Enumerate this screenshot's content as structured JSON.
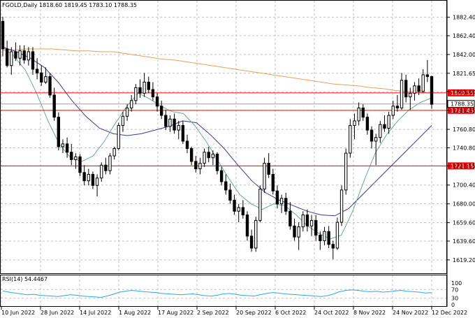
{
  "chart_data": {
    "type": "candlestick",
    "symbol_header": "FGOLD,Daily  1818.60 1819.45 1783.10 1788.35",
    "last_price": "1788.35",
    "price_axis": {
      "range": [
        1610,
        1892
      ],
      "ticks": [
        "1882.40",
        "1862.40",
        "1842.00",
        "1821.65",
        "1801.60",
        "1781.45",
        "1760.80",
        "1740.80",
        "1721.15",
        "1700.40",
        "1680.00",
        "1659.60",
        "1639.60",
        "1619.20"
      ]
    },
    "x_axis": {
      "ticks": [
        "10 Jun 2022",
        "28 Jun 2022",
        "14 Jul 2022",
        "1 Aug 2022",
        "17 Aug 2022",
        "2 Sep 2022",
        "20 Sep 2022",
        "6 Oct 2022",
        "24 Oct 2022",
        "8 Nov 2022",
        "24 Nov 2022",
        "12 Dec 2022"
      ]
    },
    "horizontal_lines": [
      {
        "label": "1800.35",
        "value": 1800.35,
        "color": "#ff0000"
      },
      {
        "label": "1781.45",
        "value": 1781.45,
        "color": "#ff0000"
      },
      {
        "label": "1721.15",
        "value": 1721.15,
        "color": "#ff0000"
      }
    ],
    "price_badge_color": "#ff0000",
    "candles": [
      [
        1878,
        1883,
        1840,
        1848
      ],
      [
        1848,
        1857,
        1828,
        1830
      ],
      [
        1830,
        1850,
        1820,
        1845
      ],
      [
        1845,
        1855,
        1835,
        1838
      ],
      [
        1838,
        1852,
        1830,
        1846
      ],
      [
        1846,
        1852,
        1832,
        1836
      ],
      [
        1836,
        1850,
        1830,
        1845
      ],
      [
        1845,
        1850,
        1820,
        1826
      ],
      [
        1826,
        1838,
        1815,
        1822
      ],
      [
        1822,
        1830,
        1808,
        1812
      ],
      [
        1812,
        1828,
        1810,
        1818
      ],
      [
        1818,
        1822,
        1795,
        1798
      ],
      [
        1798,
        1806,
        1770,
        1774
      ],
      [
        1774,
        1779,
        1738,
        1742
      ],
      [
        1742,
        1750,
        1735,
        1745
      ],
      [
        1745,
        1752,
        1730,
        1736
      ],
      [
        1736,
        1745,
        1722,
        1728
      ],
      [
        1728,
        1735,
        1718,
        1731
      ],
      [
        1731,
        1734,
        1710,
        1714
      ],
      [
        1714,
        1722,
        1700,
        1705
      ],
      [
        1705,
        1718,
        1700,
        1712
      ],
      [
        1712,
        1715,
        1696,
        1700
      ],
      [
        1700,
        1712,
        1688,
        1708
      ],
      [
        1708,
        1725,
        1704,
        1722
      ],
      [
        1722,
        1730,
        1712,
        1716
      ],
      [
        1716,
        1735,
        1712,
        1732
      ],
      [
        1732,
        1742,
        1728,
        1740
      ],
      [
        1740,
        1768,
        1738,
        1765
      ],
      [
        1765,
        1780,
        1758,
        1775
      ],
      [
        1775,
        1788,
        1770,
        1784
      ],
      [
        1784,
        1798,
        1780,
        1792
      ],
      [
        1792,
        1810,
        1788,
        1806
      ],
      [
        1806,
        1815,
        1795,
        1800
      ],
      [
        1800,
        1822,
        1796,
        1812
      ],
      [
        1812,
        1818,
        1800,
        1804
      ],
      [
        1804,
        1812,
        1792,
        1796
      ],
      [
        1796,
        1800,
        1780,
        1786
      ],
      [
        1786,
        1792,
        1772,
        1776
      ],
      [
        1776,
        1782,
        1760,
        1764
      ],
      [
        1764,
        1776,
        1758,
        1772
      ],
      [
        1772,
        1778,
        1756,
        1760
      ],
      [
        1760,
        1770,
        1750,
        1765
      ],
      [
        1765,
        1770,
        1745,
        1748
      ],
      [
        1748,
        1755,
        1735,
        1740
      ],
      [
        1740,
        1742,
        1722,
        1726
      ],
      [
        1726,
        1732,
        1714,
        1718
      ],
      [
        1718,
        1730,
        1712,
        1724
      ],
      [
        1724,
        1740,
        1720,
        1736
      ],
      [
        1736,
        1742,
        1725,
        1730
      ],
      [
        1730,
        1738,
        1722,
        1734
      ],
      [
        1734,
        1736,
        1712,
        1716
      ],
      [
        1716,
        1720,
        1700,
        1704
      ],
      [
        1704,
        1712,
        1690,
        1695
      ],
      [
        1695,
        1702,
        1680,
        1684
      ],
      [
        1684,
        1690,
        1668,
        1672
      ],
      [
        1672,
        1680,
        1660,
        1676
      ],
      [
        1676,
        1684,
        1664,
        1668
      ],
      [
        1668,
        1672,
        1640,
        1645
      ],
      [
        1645,
        1652,
        1628,
        1632
      ],
      [
        1632,
        1666,
        1628,
        1662
      ],
      [
        1662,
        1700,
        1660,
        1696
      ],
      [
        1696,
        1730,
        1692,
        1724
      ],
      [
        1724,
        1735,
        1708,
        1712
      ],
      [
        1712,
        1718,
        1690,
        1694
      ],
      [
        1694,
        1700,
        1675,
        1680
      ],
      [
        1680,
        1690,
        1670,
        1686
      ],
      [
        1686,
        1692,
        1668,
        1672
      ],
      [
        1672,
        1682,
        1652,
        1656
      ],
      [
        1656,
        1664,
        1640,
        1644
      ],
      [
        1644,
        1660,
        1630,
        1655
      ],
      [
        1655,
        1672,
        1650,
        1668
      ],
      [
        1668,
        1674,
        1650,
        1656
      ],
      [
        1656,
        1668,
        1645,
        1662
      ],
      [
        1662,
        1668,
        1640,
        1646
      ],
      [
        1646,
        1650,
        1630,
        1640
      ],
      [
        1640,
        1655,
        1635,
        1650
      ],
      [
        1650,
        1656,
        1632,
        1636
      ],
      [
        1636,
        1640,
        1620,
        1632
      ],
      [
        1632,
        1665,
        1630,
        1660
      ],
      [
        1660,
        1700,
        1656,
        1695
      ],
      [
        1695,
        1740,
        1690,
        1735
      ],
      [
        1735,
        1772,
        1730,
        1765
      ],
      [
        1765,
        1778,
        1750,
        1770
      ],
      [
        1770,
        1790,
        1765,
        1784
      ],
      [
        1784,
        1788,
        1770,
        1774
      ],
      [
        1774,
        1778,
        1755,
        1760
      ],
      [
        1760,
        1764,
        1740,
        1748
      ],
      [
        1748,
        1756,
        1722,
        1752
      ],
      [
        1752,
        1770,
        1746,
        1766
      ],
      [
        1766,
        1776,
        1758,
        1762
      ],
      [
        1762,
        1780,
        1756,
        1776
      ],
      [
        1776,
        1792,
        1772,
        1786
      ],
      [
        1786,
        1798,
        1780,
        1784
      ],
      [
        1784,
        1822,
        1782,
        1814
      ],
      [
        1814,
        1820,
        1790,
        1796
      ],
      [
        1796,
        1806,
        1782,
        1800
      ],
      [
        1800,
        1812,
        1792,
        1808
      ],
      [
        1808,
        1816,
        1798,
        1802
      ],
      [
        1802,
        1826,
        1800,
        1820
      ],
      [
        1820,
        1836,
        1812,
        1818
      ],
      [
        1818,
        1819,
        1783,
        1788
      ]
    ],
    "moving_averages": [
      {
        "color": "#e8a060",
        "values": [
          1846,
          1847,
          1848,
          1848,
          1848,
          1847,
          1846,
          1846,
          1845,
          1845,
          1843,
          1841,
          1839,
          1837,
          1836,
          1834,
          1832,
          1830,
          1828,
          1826,
          1824,
          1822,
          1820,
          1818,
          1816,
          1814,
          1812,
          1810,
          1809,
          1808,
          1806,
          1805,
          1803,
          1802,
          1801,
          1800
        ]
      },
      {
        "color": "#3a3aa0",
        "values": [
          1850,
          1845,
          1838,
          1828,
          1812,
          1792,
          1775,
          1762,
          1756,
          1754,
          1756,
          1760,
          1764,
          1770,
          1768,
          1755,
          1740,
          1722,
          1705,
          1692,
          1684,
          1678,
          1672,
          1668,
          1667,
          1675,
          1690,
          1705,
          1720,
          1735,
          1750,
          1765
        ]
      },
      {
        "color": "#60b090",
        "values": [
          1850,
          1840,
          1825,
          1800,
          1770,
          1745,
          1730,
          1726,
          1732,
          1748,
          1768,
          1786,
          1800,
          1794,
          1786,
          1780,
          1778,
          1765,
          1748,
          1728,
          1708,
          1690,
          1680,
          1674,
          1680,
          1678,
          1668,
          1656,
          1648,
          1642,
          1646,
          1672,
          1705,
          1735,
          1755,
          1770,
          1782,
          1790,
          1795
        ]
      }
    ],
    "rsi": {
      "label": "RSI(14) 54.4467",
      "ticks": [
        "100",
        "70",
        "30",
        "0"
      ],
      "range": [
        0,
        100
      ],
      "levels": [
        30,
        70
      ],
      "color": "#2aa8e8",
      "values": [
        64,
        58,
        54,
        50,
        46,
        48,
        44,
        42,
        40,
        38,
        42,
        46,
        44,
        40,
        38,
        36,
        34,
        40,
        48,
        58,
        62,
        66,
        64,
        60,
        58,
        56,
        52,
        50,
        48,
        46,
        48,
        50,
        46,
        42,
        40,
        44,
        50,
        52,
        48,
        44,
        42,
        40,
        46,
        52,
        56,
        54,
        50,
        48,
        46,
        44,
        42,
        40,
        38,
        42,
        50,
        60,
        66,
        68,
        66,
        62,
        60,
        62,
        58,
        60,
        64,
        66,
        62,
        60,
        58,
        54,
        55
      ]
    }
  }
}
